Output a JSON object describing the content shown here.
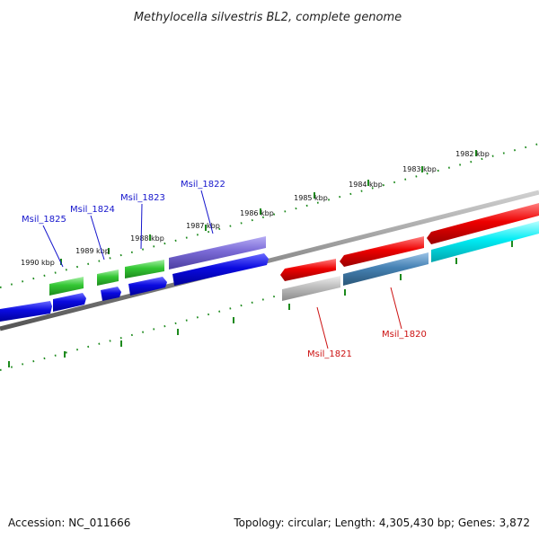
{
  "title": "Methylocella silvestris BL2, complete genome",
  "footer": {
    "accession": "Accession: NC_011666",
    "summary": "Topology: circular; Length: 4,305,430 bp; Genes: 3,872"
  },
  "ticks": [
    "1990 kbp",
    "1989 kbp",
    "1988 kbp",
    "1987 kbp",
    "1986 kbp",
    "1985 kbp",
    "1984 kbp",
    "1983 kbp",
    "1982 kbp"
  ],
  "genes_top": [
    {
      "name": "Msil_1825",
      "color": "#1515cc"
    },
    {
      "name": "Msil_1824",
      "color": "#1515cc"
    },
    {
      "name": "Msil_1823",
      "color": "#1515cc"
    },
    {
      "name": "Msil_1822",
      "color": "#1515cc"
    }
  ],
  "genes_bottom": [
    {
      "name": "Msil_1821",
      "color": "#cc1111"
    },
    {
      "name": "Msil_1820",
      "color": "#cc1111"
    }
  ],
  "colors": {
    "backbone": "#888888",
    "tick": "#1d8a1d",
    "green": "#2fbf2f",
    "blue": "#0a0ae0",
    "purple": "#6a5acd",
    "red": "#e00000",
    "grey": "#b3b3b3",
    "steelblue": "#4682b4",
    "cyan": "#00e5ee"
  }
}
